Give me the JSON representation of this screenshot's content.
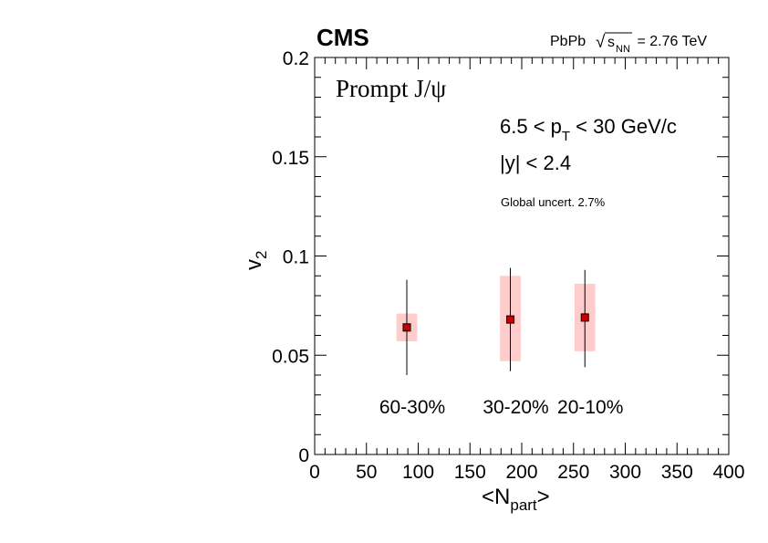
{
  "chart_data": {
    "type": "scatter",
    "experiment": "CMS",
    "system": {
      "prefix": "PbPb",
      "sqrt_symbol": "√",
      "s": "s",
      "nn": "NN",
      "suffix": " = 2.76 TeV"
    },
    "panel_label": "Prompt J/ψ",
    "cuts": {
      "pt_prefix": "6.5 < p",
      "pt_sub": "T",
      "pt_suffix": " < 30 GeV/c",
      "y": "|y| < 2.4"
    },
    "global_uncertainty": "Global uncert. 2.7%",
    "xlabel": {
      "main": "<N",
      "sub": "part",
      "close": ">"
    },
    "ylabel": {
      "main": "v",
      "sub": "2"
    },
    "xlim": [
      0,
      400
    ],
    "ylim": [
      0,
      0.2
    ],
    "x_ticks": [
      0,
      50,
      100,
      150,
      200,
      250,
      300,
      350,
      400
    ],
    "x_tick_labels": [
      "0",
      "50",
      "100",
      "150",
      "200",
      "250",
      "300",
      "350",
      "400"
    ],
    "y_ticks": [
      0,
      0.05,
      0.1,
      0.15,
      0.2
    ],
    "y_tick_labels": [
      "0",
      "0.05",
      "0.1",
      "0.15",
      "0.2"
    ],
    "points": [
      {
        "x": 89,
        "y": 0.064,
        "stat_low": 0.04,
        "stat_high": 0.088,
        "syst_low": 0.057,
        "syst_high": 0.071,
        "syst_half_width": 10,
        "centrality": "60-30%"
      },
      {
        "x": 189,
        "y": 0.068,
        "stat_low": 0.042,
        "stat_high": 0.094,
        "syst_low": 0.047,
        "syst_high": 0.09,
        "syst_half_width": 10,
        "centrality": "30-20%"
      },
      {
        "x": 261,
        "y": 0.069,
        "stat_low": 0.044,
        "stat_high": 0.093,
        "syst_low": 0.052,
        "syst_high": 0.086,
        "syst_half_width": 10,
        "centrality": "20-10%"
      }
    ],
    "colors": {
      "marker": "#cc0000",
      "syst_box": "#ffcccc",
      "line": "#000000"
    },
    "grid": false,
    "legend": "none"
  }
}
